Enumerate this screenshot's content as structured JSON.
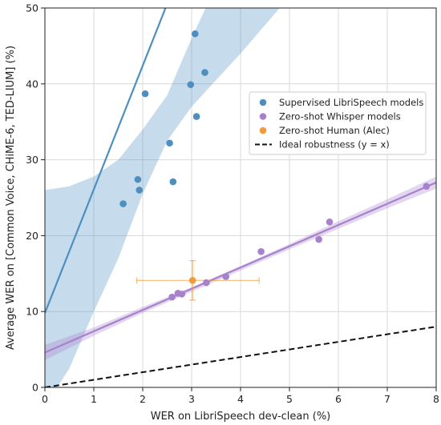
{
  "chart_data": {
    "type": "scatter",
    "xlabel": "WER on LibriSpeech dev-clean (%)",
    "ylabel": "Average WER on [Common Voice, CHiME-6, TED-LIUM] (%)",
    "xlim": [
      0,
      8
    ],
    "ylim": [
      0,
      50
    ],
    "x_ticks": [
      "0",
      "1",
      "2",
      "3",
      "4",
      "5",
      "6",
      "7",
      "8"
    ],
    "y_ticks": [
      "0",
      "10",
      "20",
      "30",
      "40",
      "50"
    ],
    "grid": true,
    "legend_position": "right",
    "legend": [
      {
        "label": "Supervised LibriSpeech models",
        "color": "#4e8fc0",
        "kind": "dot"
      },
      {
        "label": "Zero-shot Whisper models",
        "color": "#a781cc",
        "kind": "dot"
      },
      {
        "label": "Zero-shot Human (Alec)",
        "color": "#f39a3a",
        "kind": "dot"
      },
      {
        "label": "Ideal robustness (y = x)",
        "color": "#111111",
        "kind": "dash"
      }
    ],
    "series": [
      {
        "name": "Supervised LibriSpeech models",
        "color": "#4e8fc0",
        "points": [
          [
            1.6,
            24.2
          ],
          [
            1.9,
            27.4
          ],
          [
            1.93,
            26.0
          ],
          [
            2.05,
            38.7
          ],
          [
            2.55,
            32.2
          ],
          [
            2.62,
            27.1
          ],
          [
            2.98,
            39.9
          ],
          [
            3.07,
            46.6
          ],
          [
            3.1,
            35.7
          ],
          [
            3.27,
            41.5
          ]
        ],
        "fit": {
          "slope": 16.3,
          "intercept": 9.8
        },
        "band": [
          [
            0,
            -2.5,
            26.0
          ],
          [
            0.5,
            2.5,
            26.5
          ],
          [
            1.0,
            10.0,
            27.8
          ],
          [
            1.5,
            17.0,
            30.0
          ],
          [
            2.0,
            25.5,
            34.0
          ],
          [
            2.5,
            32.5,
            38.5
          ],
          [
            3.0,
            37.0,
            46.0
          ],
          [
            3.5,
            40.5,
            53.0
          ],
          [
            4.0,
            44.0,
            62.0
          ],
          [
            5.0,
            51.5,
            78.0
          ]
        ]
      },
      {
        "name": "Zero-shot Whisper models",
        "color": "#a781cc",
        "points": [
          [
            2.6,
            11.9
          ],
          [
            2.72,
            12.4
          ],
          [
            2.8,
            12.3
          ],
          [
            3.3,
            13.8
          ],
          [
            3.7,
            14.6
          ],
          [
            4.42,
            17.9
          ],
          [
            5.6,
            19.5
          ],
          [
            5.82,
            21.8
          ],
          [
            7.8,
            26.5
          ]
        ],
        "fit": {
          "slope": 2.8,
          "intercept": 4.6
        },
        "band": [
          [
            0,
            3.6,
            5.6
          ],
          [
            1,
            6.8,
            7.9
          ],
          [
            2,
            9.8,
            10.6
          ],
          [
            3,
            12.6,
            13.2
          ],
          [
            4,
            15.4,
            16.0
          ],
          [
            5,
            18.2,
            18.9
          ],
          [
            6,
            20.9,
            21.9
          ],
          [
            7,
            23.6,
            24.8
          ],
          [
            8,
            26.2,
            27.8
          ]
        ]
      },
      {
        "name": "Zero-shot Human (Alec)",
        "color": "#f39a3a",
        "points": [
          [
            3.02,
            14.1
          ]
        ],
        "xerr": [
          [
            1.88,
            4.38
          ]
        ],
        "yerr": [
          [
            11.5,
            16.7
          ]
        ]
      },
      {
        "name": "Ideal robustness (y = x)",
        "color": "#111111",
        "line": [
          [
            0,
            0
          ],
          [
            8,
            8
          ]
        ]
      }
    ]
  }
}
